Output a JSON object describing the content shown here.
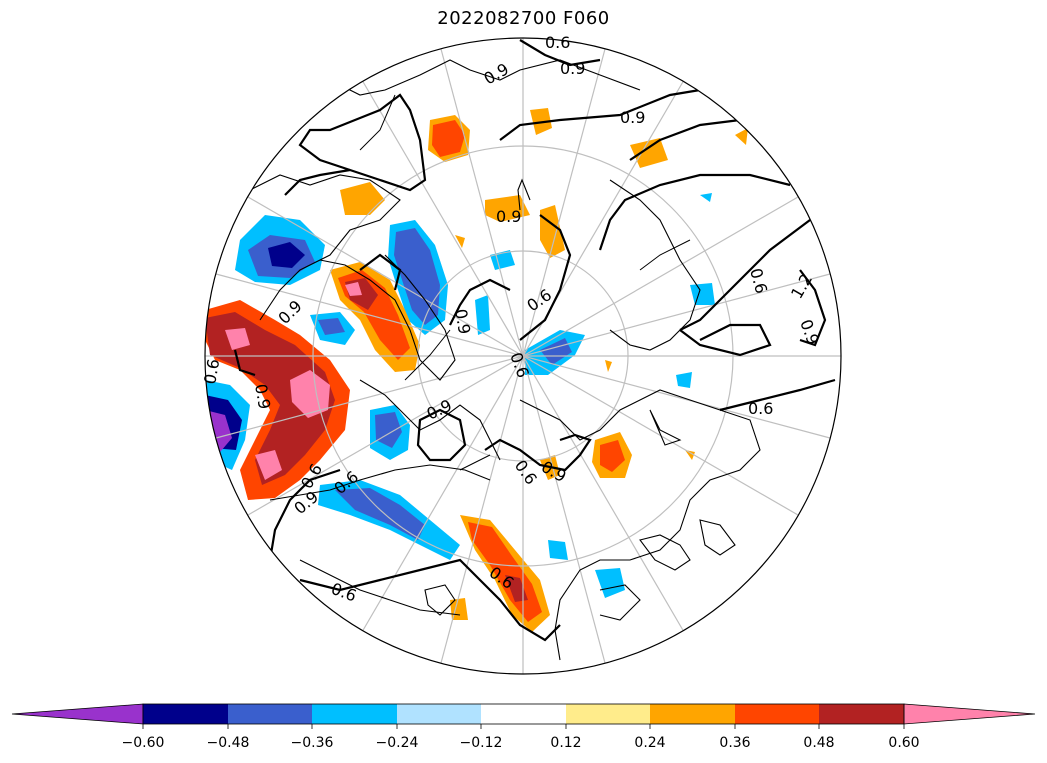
{
  "title": "2022082700 F060",
  "map": {
    "projection": "north-polar-stereographic",
    "contour_labels": [
      "0.6",
      "0.9",
      "0.9",
      "0.9",
      "0.9",
      "0.6",
      "0.6",
      "0.9",
      "0.6",
      "1.2",
      "0.9",
      "0.6",
      "0.9",
      "0.6",
      "0.9",
      "0.6",
      "0.6",
      "0.9",
      "0.9",
      "0.6",
      "0.9",
      "0.6",
      "0.6"
    ]
  },
  "colorbar": {
    "tick_labels": [
      "−0.60",
      "−0.48",
      "−0.36",
      "−0.24",
      "−0.12",
      "0.12",
      "0.24",
      "0.36",
      "0.48",
      "0.60"
    ],
    "colors": [
      "#9932cc",
      "#00008b",
      "#3a5fcd",
      "#00bfff",
      "#b0e2ff",
      "#ffffff",
      "#ffec8b",
      "#ffa500",
      "#ff4500",
      "#b22222",
      "#ff82ab"
    ],
    "extend": "both"
  }
}
